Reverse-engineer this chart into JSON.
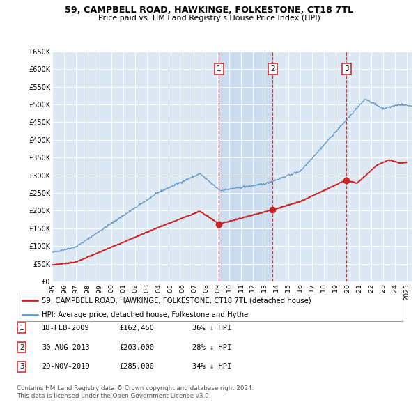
{
  "title": "59, CAMPBELL ROAD, HAWKINGE, FOLKESTONE, CT18 7TL",
  "subtitle": "Price paid vs. HM Land Registry's House Price Index (HPI)",
  "background_color": "#ffffff",
  "plot_bg_color": "#dce9f5",
  "grid_color": "#ffffff",
  "hpi_color": "#6699cc",
  "sale_color": "#cc2222",
  "shade_color": "#c8d8ee",
  "ylim": [
    0,
    650000
  ],
  "yticks": [
    0,
    50000,
    100000,
    150000,
    200000,
    250000,
    300000,
    350000,
    400000,
    450000,
    500000,
    550000,
    600000,
    650000
  ],
  "ytick_labels": [
    "£0",
    "£50K",
    "£100K",
    "£150K",
    "£200K",
    "£250K",
    "£300K",
    "£350K",
    "£400K",
    "£450K",
    "£500K",
    "£550K",
    "£600K",
    "£650K"
  ],
  "xlim_start": 1995.0,
  "xlim_end": 2025.5,
  "xtick_years": [
    1995,
    1996,
    1997,
    1998,
    1999,
    2000,
    2001,
    2002,
    2003,
    2004,
    2005,
    2006,
    2007,
    2008,
    2009,
    2010,
    2011,
    2012,
    2013,
    2014,
    2015,
    2016,
    2017,
    2018,
    2019,
    2020,
    2021,
    2022,
    2023,
    2024,
    2025
  ],
  "sale_dates": [
    2009.12,
    2013.66,
    2019.91
  ],
  "sale_prices": [
    162450,
    203000,
    285000
  ],
  "sale_labels": [
    "1",
    "2",
    "3"
  ],
  "legend_line1": "59, CAMPBELL ROAD, HAWKINGE, FOLKESTONE, CT18 7TL (detached house)",
  "legend_line2": "HPI: Average price, detached house, Folkestone and Hythe",
  "table_data": [
    [
      "1",
      "18-FEB-2009",
      "£162,450",
      "36% ↓ HPI"
    ],
    [
      "2",
      "30-AUG-2013",
      "£203,000",
      "28% ↓ HPI"
    ],
    [
      "3",
      "29-NOV-2019",
      "£285,000",
      "34% ↓ HPI"
    ]
  ],
  "footnote1": "Contains HM Land Registry data © Crown copyright and database right 2024.",
  "footnote2": "This data is licensed under the Open Government Licence v3.0."
}
